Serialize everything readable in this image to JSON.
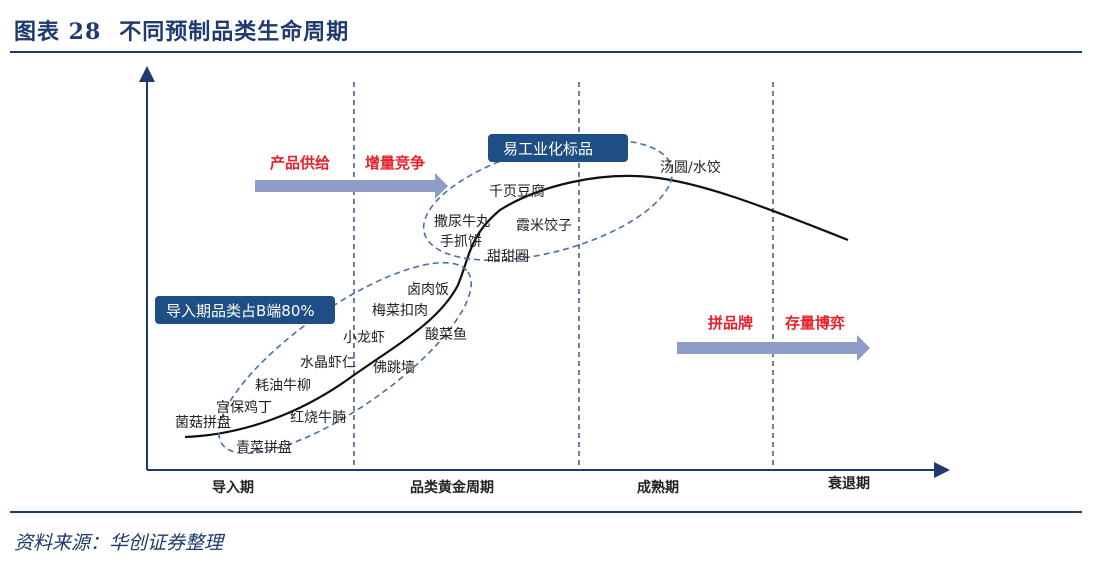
{
  "header": {
    "figure_no": "图表 28",
    "title": "不同预制品类生命周期"
  },
  "source": "资料来源：华创证券整理",
  "diagram": {
    "phases": [
      "导入期",
      "品类黄金周期",
      "成熟期",
      "衰退期"
    ],
    "arrow_left": [
      "产品供给",
      "增量竞争"
    ],
    "arrow_right": [
      "拼品牌",
      "存量博弈"
    ],
    "box_intro": "导入期品类占B端80%",
    "box_industrial": "易工业化标品",
    "items": [
      "菌菇拼盘",
      "宫保鸡丁",
      "青菜拼盘",
      "耗油牛柳",
      "红烧牛腩",
      "水晶虾仁",
      "佛跳墙",
      "小龙虾",
      "酸菜鱼",
      "梅菜扣肉",
      "卤肉饭",
      "甜甜圈",
      "手抓饼",
      "撒尿牛丸",
      "霞米饺子",
      "千页豆腐",
      "汤圆/水饺"
    ],
    "colors": {
      "accent": "#1f3a6e",
      "box": "#1f4e85",
      "arrow": "#8e9cc7",
      "red": "#e8202a",
      "ellipse": "#4a6fa5"
    }
  }
}
